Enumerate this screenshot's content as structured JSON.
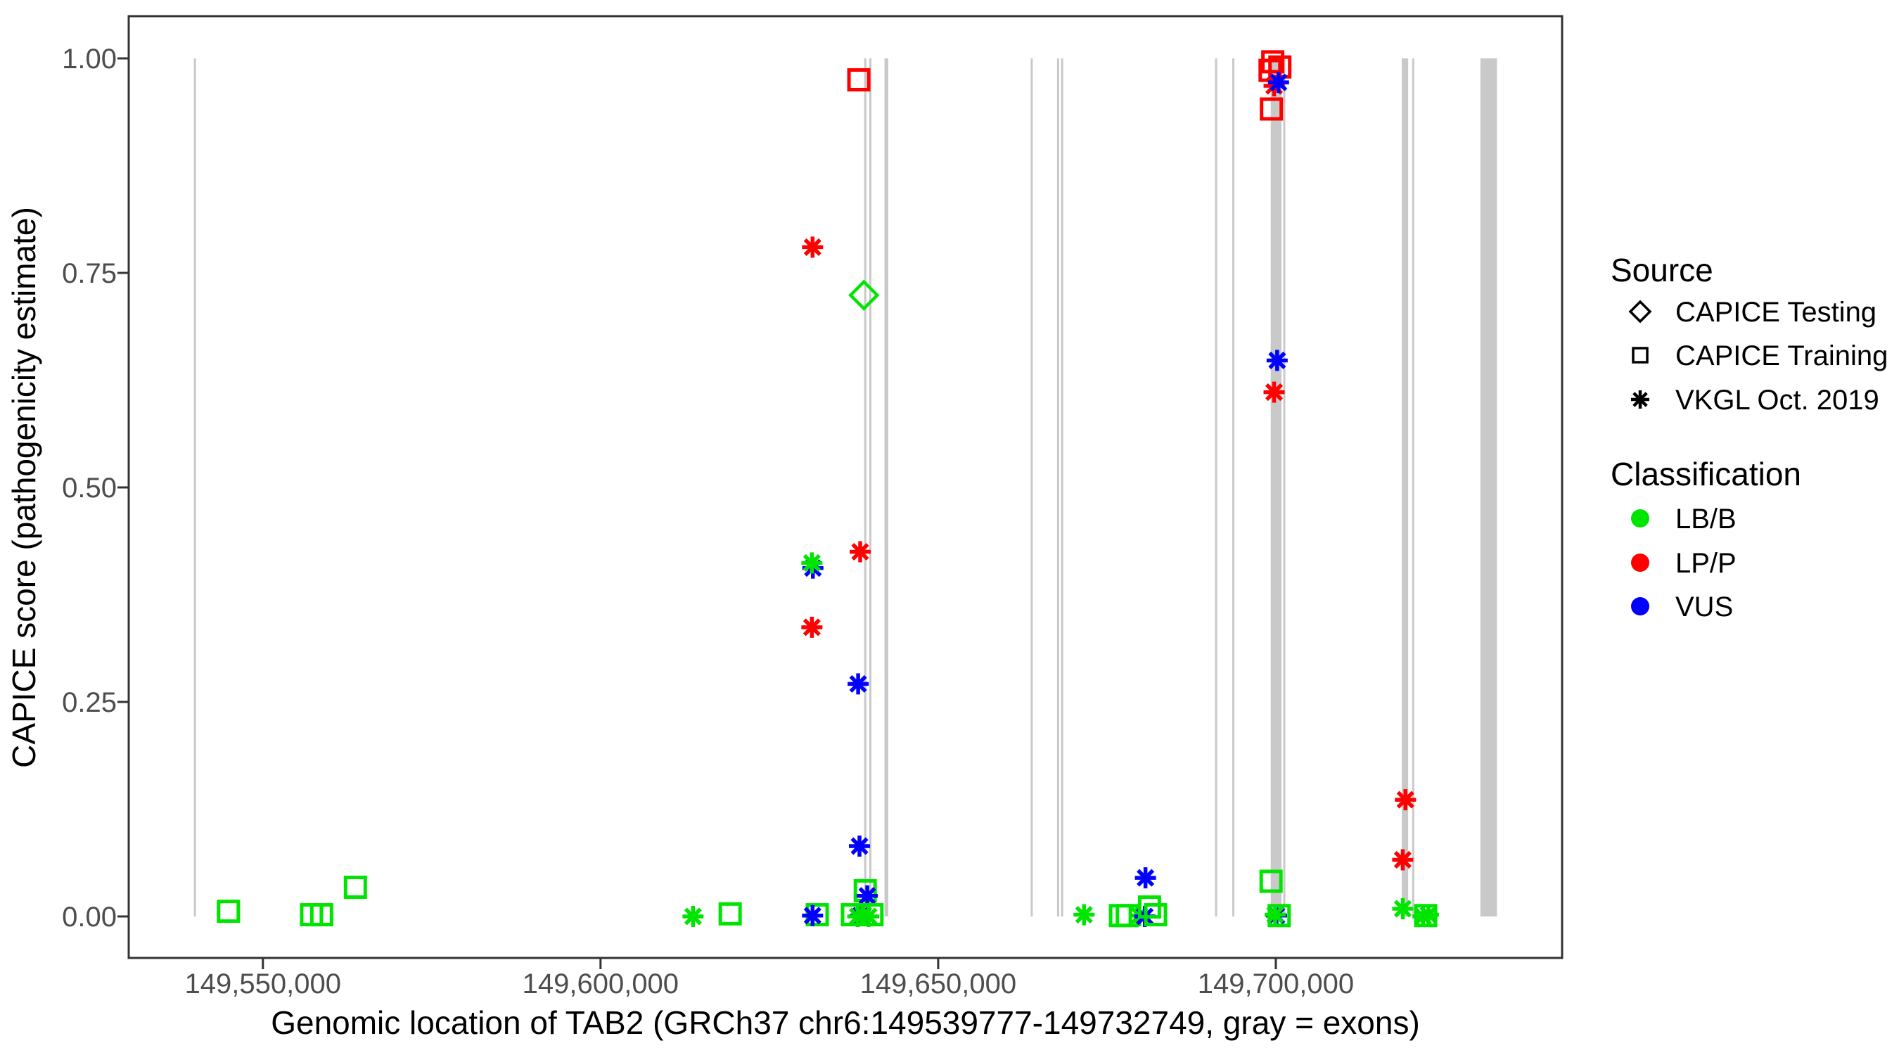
{
  "chart_data": {
    "type": "scatter",
    "title": "",
    "xlabel": "Genomic location of TAB2 (GRCh37 chr6:149539777-149732749, gray = exons)",
    "ylabel": "CAPICE score (pathogenicity estimate)",
    "xlim": [
      149530128,
      149742398
    ],
    "ylim": [
      0,
      1
    ],
    "gene": {
      "name": "TAB2",
      "assembly": "GRCh37",
      "region": "chr6:149539777-149732749"
    },
    "x_ticks": [
      {
        "value": 149550000,
        "label": "149,550,000"
      },
      {
        "value": 149600000,
        "label": "149,600,000"
      },
      {
        "value": 149650000,
        "label": "149,650,000"
      },
      {
        "value": 149700000,
        "label": "149,700,000"
      }
    ],
    "y_ticks": [
      {
        "value": 0.0,
        "label": "0.00"
      },
      {
        "value": 0.25,
        "label": "0.25"
      },
      {
        "value": 0.5,
        "label": "0.50"
      },
      {
        "value": 0.75,
        "label": "0.75"
      },
      {
        "value": 1.0,
        "label": "1.00"
      }
    ],
    "legend": {
      "source": {
        "title": "Source",
        "items": [
          {
            "label": "CAPICE Testing",
            "shape": "diamond"
          },
          {
            "label": "CAPICE Training",
            "shape": "square"
          },
          {
            "label": "VKGL Oct. 2019",
            "shape": "asterisk"
          }
        ]
      },
      "classification": {
        "title": "Classification",
        "items": [
          {
            "label": "LB/B",
            "color": "#00E500"
          },
          {
            "label": "LP/P",
            "color": "#FF0000"
          },
          {
            "label": "VUS",
            "color": "#0000FF"
          }
        ]
      }
    },
    "source_shapes": {
      "CAPICE Testing": "diamond",
      "CAPICE Training": "square",
      "VKGL Oct. 2019": "asterisk"
    },
    "classification_colors": {
      "LB/B": "#00E500",
      "LP/P": "#FF0000",
      "VUS": "#0000FF"
    },
    "exon_color": "#C9C9C9",
    "exons": [
      [
        149539777,
        149540060
      ],
      [
        149639050,
        149639360
      ],
      [
        149639800,
        149640110
      ],
      [
        149642050,
        149642610
      ],
      [
        149663700,
        149664010
      ],
      [
        149667600,
        149667910
      ],
      [
        149668200,
        149668510
      ],
      [
        149691000,
        149691310
      ],
      [
        149693550,
        149693860
      ],
      [
        149699250,
        149700850
      ],
      [
        149701100,
        149701410
      ],
      [
        149718650,
        149719600
      ],
      [
        149720200,
        149720510
      ],
      [
        149730300,
        149732749
      ]
    ],
    "points": [
      {
        "bp": 149544900,
        "score": 0.006,
        "source": "CAPICE Training",
        "classification": "LB/B"
      },
      {
        "bp": 149557200,
        "score": 0.002,
        "source": "CAPICE Training",
        "classification": "LB/B"
      },
      {
        "bp": 149558700,
        "score": 0.002,
        "source": "CAPICE Training",
        "classification": "LB/B"
      },
      {
        "bp": 149563700,
        "score": 0.034,
        "source": "CAPICE Training",
        "classification": "LB/B"
      },
      {
        "bp": 149613700,
        "score": 0.0,
        "source": "VKGL Oct. 2019",
        "classification": "LB/B"
      },
      {
        "bp": 149619200,
        "score": 0.003,
        "source": "CAPICE Training",
        "classification": "LB/B"
      },
      {
        "bp": 149631400,
        "score": 0.78,
        "source": "VKGL Oct. 2019",
        "classification": "LP/P"
      },
      {
        "bp": 149631450,
        "score": 0.406,
        "source": "VKGL Oct. 2019",
        "classification": "VUS"
      },
      {
        "bp": 149631300,
        "score": 0.412,
        "source": "VKGL Oct. 2019",
        "classification": "LB/B"
      },
      {
        "bp": 149631300,
        "score": 0.337,
        "source": "VKGL Oct. 2019",
        "classification": "LP/P"
      },
      {
        "bp": 149632100,
        "score": 0.002,
        "source": "CAPICE Training",
        "classification": "LB/B"
      },
      {
        "bp": 149631400,
        "score": 0.001,
        "source": "VKGL Oct. 2019",
        "classification": "VUS"
      },
      {
        "bp": 149638250,
        "score": 0.975,
        "source": "CAPICE Training",
        "classification": "LP/P"
      },
      {
        "bp": 149639000,
        "score": 0.724,
        "source": "CAPICE Testing",
        "classification": "LB/B"
      },
      {
        "bp": 149638450,
        "score": 0.425,
        "source": "VKGL Oct. 2019",
        "classification": "LP/P"
      },
      {
        "bp": 149638150,
        "score": 0.271,
        "source": "VKGL Oct. 2019",
        "classification": "VUS"
      },
      {
        "bp": 149638350,
        "score": 0.082,
        "source": "VKGL Oct. 2019",
        "classification": "VUS"
      },
      {
        "bp": 149639200,
        "score": 0.03,
        "source": "CAPICE Training",
        "classification": "LB/B"
      },
      {
        "bp": 149639500,
        "score": 0.024,
        "source": "VKGL Oct. 2019",
        "classification": "VUS"
      },
      {
        "bp": 149638500,
        "score": 0.001,
        "source": "VKGL Oct. 2019",
        "classification": "VUS"
      },
      {
        "bp": 149637300,
        "score": 0.002,
        "source": "CAPICE Training",
        "classification": "LB/B"
      },
      {
        "bp": 149638100,
        "score": 0.0,
        "source": "VKGL Oct. 2019",
        "classification": "LB/B"
      },
      {
        "bp": 149638900,
        "score": 0.002,
        "source": "VKGL Oct. 2019",
        "classification": "LB/B"
      },
      {
        "bp": 149639700,
        "score": 0.0,
        "source": "VKGL Oct. 2019",
        "classification": "LB/B"
      },
      {
        "bp": 149640200,
        "score": 0.002,
        "source": "CAPICE Training",
        "classification": "LB/B"
      },
      {
        "bp": 149671600,
        "score": 0.002,
        "source": "VKGL Oct. 2019",
        "classification": "LB/B"
      },
      {
        "bp": 149677000,
        "score": 0.001,
        "source": "CAPICE Training",
        "classification": "LB/B"
      },
      {
        "bp": 149678000,
        "score": 0.001,
        "source": "CAPICE Training",
        "classification": "LB/B"
      },
      {
        "bp": 149679800,
        "score": 0.001,
        "source": "VKGL Oct. 2019",
        "classification": "LB/B"
      },
      {
        "bp": 149680700,
        "score": 0.045,
        "source": "VKGL Oct. 2019",
        "classification": "VUS"
      },
      {
        "bp": 149680600,
        "score": 0.0,
        "source": "VKGL Oct. 2019",
        "classification": "VUS"
      },
      {
        "bp": 149681300,
        "score": 0.011,
        "source": "CAPICE Training",
        "classification": "LB/B"
      },
      {
        "bp": 149682200,
        "score": 0.002,
        "source": "CAPICE Training",
        "classification": "LB/B"
      },
      {
        "bp": 149699150,
        "score": 0.986,
        "source": "CAPICE Training",
        "classification": "LP/P"
      },
      {
        "bp": 149700600,
        "score": 0.99,
        "source": "CAPICE Training",
        "classification": "LP/P"
      },
      {
        "bp": 149699550,
        "score": 0.996,
        "source": "CAPICE Training",
        "classification": "LP/P"
      },
      {
        "bp": 149699750,
        "score": 0.968,
        "source": "VKGL Oct. 2019",
        "classification": "LP/P"
      },
      {
        "bp": 149700400,
        "score": 0.972,
        "source": "VKGL Oct. 2019",
        "classification": "VUS"
      },
      {
        "bp": 149699350,
        "score": 0.941,
        "source": "CAPICE Training",
        "classification": "LP/P"
      },
      {
        "bp": 149700200,
        "score": 0.648,
        "source": "VKGL Oct. 2019",
        "classification": "VUS"
      },
      {
        "bp": 149699750,
        "score": 0.611,
        "source": "VKGL Oct. 2019",
        "classification": "LP/P"
      },
      {
        "bp": 149699300,
        "score": 0.041,
        "source": "CAPICE Training",
        "classification": "LB/B"
      },
      {
        "bp": 149700100,
        "score": 0.001,
        "source": "VKGL Oct. 2019",
        "classification": "VUS"
      },
      {
        "bp": 149699900,
        "score": 0.002,
        "source": "VKGL Oct. 2019",
        "classification": "LB/B"
      },
      {
        "bp": 149700500,
        "score": 0.001,
        "source": "CAPICE Training",
        "classification": "LB/B"
      },
      {
        "bp": 149719200,
        "score": 0.136,
        "source": "VKGL Oct. 2019",
        "classification": "LP/P"
      },
      {
        "bp": 149718800,
        "score": 0.066,
        "source": "VKGL Oct. 2019",
        "classification": "LP/P"
      },
      {
        "bp": 149718800,
        "score": 0.009,
        "source": "VKGL Oct. 2019",
        "classification": "LB/B"
      },
      {
        "bp": 149721800,
        "score": 0.0,
        "source": "VKGL Oct. 2019",
        "classification": "LB/B"
      },
      {
        "bp": 149722600,
        "score": 0.002,
        "source": "VKGL Oct. 2019",
        "classification": "LB/B"
      },
      {
        "bp": 149722200,
        "score": 0.001,
        "source": "CAPICE Training",
        "classification": "LB/B"
      }
    ]
  }
}
